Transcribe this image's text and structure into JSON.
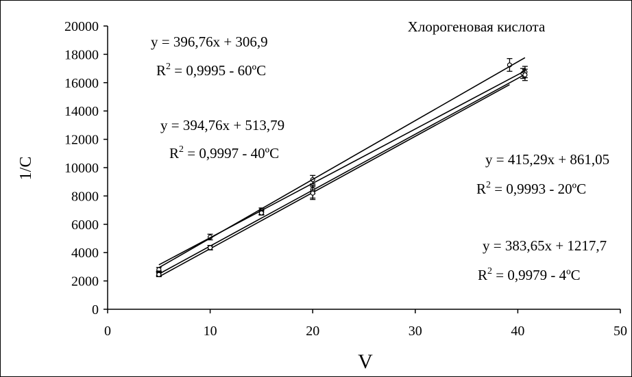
{
  "chart_data": {
    "type": "scatter",
    "title": "Хлорогеновая кислота",
    "xlabel": "V",
    "ylabel": "1/С",
    "xlim": [
      0,
      50
    ],
    "ylim": [
      0,
      20000
    ],
    "xticks": [
      0,
      10,
      20,
      30,
      40,
      50
    ],
    "yticks": [
      0,
      2000,
      4000,
      6000,
      8000,
      10000,
      12000,
      14000,
      16000,
      18000,
      20000
    ],
    "grid": false,
    "legend": "none",
    "series": [
      {
        "x": [
          5,
          10,
          15,
          20,
          39.2
        ],
        "y": [
          2800,
          5100,
          7000,
          9150,
          17250
        ],
        "yerr": [
          150,
          200,
          150,
          300,
          450
        ],
        "fit": {
          "slope": 396.76,
          "intercept": 306.9
        },
        "equation": "y = 396,76x + 306,9",
        "r2_value": " = 0,9995 - 60ºC"
      },
      {
        "x": [
          5,
          10,
          15,
          20,
          40.5
        ],
        "y": [
          2550,
          4350,
          6850,
          8450,
          16650
        ],
        "yerr": [
          150,
          150,
          150,
          300,
          350
        ],
        "fit": {
          "slope": 394.76,
          "intercept": 513.79
        },
        "equation": "y = 394,76x + 513,79",
        "r2_value": " = 0,9997 - 40ºC"
      },
      {
        "x": [
          5,
          10,
          15,
          20,
          40.7
        ],
        "y": [
          2500,
          4350,
          6850,
          8300,
          16750
        ],
        "yerr": [
          150,
          150,
          150,
          450,
          400
        ],
        "fit": {
          "slope": 415.29,
          "intercept": 861.05
        },
        "equation": "y = 415,29x + 861,05",
        "r2_value": " = 0,9993 - 20ºC"
      },
      {
        "x": [
          5,
          10,
          15,
          20,
          40.7
        ],
        "y": [
          2450,
          4350,
          6800,
          8200,
          16550
        ],
        "yerr": [
          150,
          150,
          150,
          450,
          400
        ],
        "fit": {
          "slope": 383.65,
          "intercept": 1217.7
        },
        "equation": "y = 383,65x + 1217,7",
        "r2_value": " = 0,9979 - 4ºC"
      }
    ],
    "r2_prefix": "R",
    "r2_superscript": "2"
  }
}
